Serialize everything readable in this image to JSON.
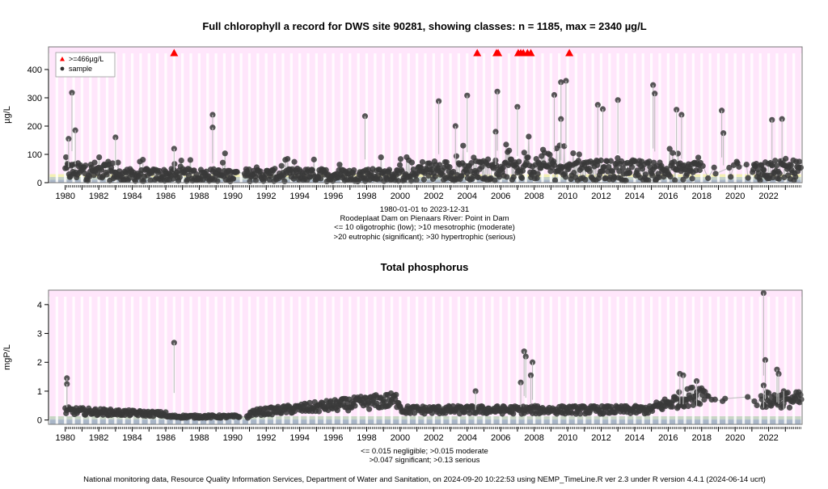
{
  "chart_data": [
    {
      "type": "scatter",
      "title": "Full chlorophyll a record for DWS site 90281, showing classes: n = 1185, max = 2340 µg/L",
      "ylabel": "µg/L",
      "ylim": [
        0,
        480
      ],
      "xlim": [
        1979.0,
        2024.0
      ],
      "yticks": [
        0,
        100,
        200,
        300,
        400
      ],
      "xticks": [
        1980,
        1982,
        1984,
        1986,
        1988,
        1990,
        1992,
        1994,
        1996,
        1998,
        2000,
        2002,
        2004,
        2006,
        2008,
        2010,
        2012,
        2014,
        2016,
        2018,
        2020,
        2022
      ],
      "grid": true,
      "legend_position": "top-left",
      "legend": [
        {
          "label": ">=466µg/L",
          "symbol": "triangle",
          "color": "#ff0000"
        },
        {
          "label": "sample",
          "symbol": "circle",
          "color": "#333333"
        }
      ],
      "class_bands": [
        {
          "from": 0,
          "to": 10,
          "color": "#a9b6c8"
        },
        {
          "from": 10,
          "to": 20,
          "color": "#c4d0c8"
        },
        {
          "from": 20,
          "to": 30,
          "color": "#f3f0b5"
        },
        {
          "from": 30,
          "to": 480,
          "color": "#ffe6fb"
        }
      ],
      "exceedance_years": [
        1986.5,
        2004.6,
        2005.75,
        2005.85,
        2007.05,
        2007.2,
        2007.35,
        2007.6,
        2007.8,
        2010.1
      ],
      "outliers": [
        {
          "x": 1980.4,
          "y": 318
        },
        {
          "x": 1980.6,
          "y": 185
        },
        {
          "x": 1980.2,
          "y": 155
        },
        {
          "x": 1983.0,
          "y": 160
        },
        {
          "x": 1986.5,
          "y": 120
        },
        {
          "x": 1988.8,
          "y": 240
        },
        {
          "x": 1988.8,
          "y": 195
        },
        {
          "x": 1997.9,
          "y": 235
        },
        {
          "x": 2002.3,
          "y": 288
        },
        {
          "x": 2003.3,
          "y": 200
        },
        {
          "x": 2004.0,
          "y": 308
        },
        {
          "x": 2005.8,
          "y": 322
        },
        {
          "x": 2005.7,
          "y": 180
        },
        {
          "x": 2007.0,
          "y": 268
        },
        {
          "x": 2009.2,
          "y": 310
        },
        {
          "x": 2009.6,
          "y": 355
        },
        {
          "x": 2009.9,
          "y": 360
        },
        {
          "x": 2009.6,
          "y": 225
        },
        {
          "x": 2011.8,
          "y": 275
        },
        {
          "x": 2012.1,
          "y": 260
        },
        {
          "x": 2013.0,
          "y": 292
        },
        {
          "x": 2015.1,
          "y": 345
        },
        {
          "x": 2015.2,
          "y": 315
        },
        {
          "x": 2016.5,
          "y": 258
        },
        {
          "x": 2016.8,
          "y": 240
        },
        {
          "x": 2019.2,
          "y": 255
        },
        {
          "x": 2019.3,
          "y": 175
        },
        {
          "x": 2022.2,
          "y": 222
        },
        {
          "x": 2022.8,
          "y": 225
        }
      ],
      "annotations": [
        "1980-01-01 to 2023-12-31",
        "Roodeplaat Dam on Pienaars River: Point in Dam",
        "<= 10 oligotrophic (low); >10 mesotrophic (moderate)",
        ">20 eutrophic (significant); >30 hypertrophic (serious)"
      ]
    },
    {
      "type": "scatter",
      "title": "Total phosphorus",
      "ylabel": "mgP/L",
      "ylim": [
        -0.15,
        4.5
      ],
      "xlim": [
        1979.0,
        2024.0
      ],
      "yticks": [
        0,
        1,
        2,
        3,
        4
      ],
      "xticks": [
        1980,
        1982,
        1984,
        1986,
        1988,
        1990,
        1992,
        1994,
        1996,
        1998,
        2000,
        2002,
        2004,
        2006,
        2008,
        2010,
        2012,
        2014,
        2016,
        2018,
        2020,
        2022
      ],
      "grid": true,
      "class_bands": [
        {
          "from": -0.15,
          "to": 0.015,
          "color": "#a9b6c8"
        },
        {
          "from": 0.015,
          "to": 0.047,
          "color": "#c4d0c8"
        },
        {
          "from": 0.047,
          "to": 0.13,
          "color": "#c9d6c5"
        },
        {
          "from": 0.13,
          "to": 4.5,
          "color": "#ffe6fb"
        }
      ],
      "outliers": [
        {
          "x": 1980.1,
          "y": 1.45
        },
        {
          "x": 1980.1,
          "y": 1.25
        },
        {
          "x": 1986.5,
          "y": 2.68
        },
        {
          "x": 2004.5,
          "y": 1.0
        },
        {
          "x": 2007.2,
          "y": 1.3
        },
        {
          "x": 2007.4,
          "y": 2.38
        },
        {
          "x": 2007.5,
          "y": 2.2
        },
        {
          "x": 2007.9,
          "y": 2.0
        },
        {
          "x": 2007.8,
          "y": 1.55
        },
        {
          "x": 2016.7,
          "y": 1.6
        },
        {
          "x": 2016.9,
          "y": 1.55
        },
        {
          "x": 2017.7,
          "y": 1.35
        },
        {
          "x": 2021.7,
          "y": 4.4
        },
        {
          "x": 2021.8,
          "y": 2.08
        },
        {
          "x": 2021.7,
          "y": 1.2
        },
        {
          "x": 2022.5,
          "y": 1.75
        },
        {
          "x": 2022.6,
          "y": 1.6
        },
        {
          "x": 2022.9,
          "y": 1.0
        }
      ],
      "annotations": [
        "<= 0.015 negligible; >0.015 moderate",
        ">0.047 significant; >0.13 serious"
      ]
    }
  ],
  "footer": "National monitoring data, Resource Quality Information Services, Department of Water and Sanitation, on 2024-09-20 10:22:53 using NEMP_TimeLine.R ver 2.3 under R version 4.4.1 (2024-06-14 ucrt)"
}
